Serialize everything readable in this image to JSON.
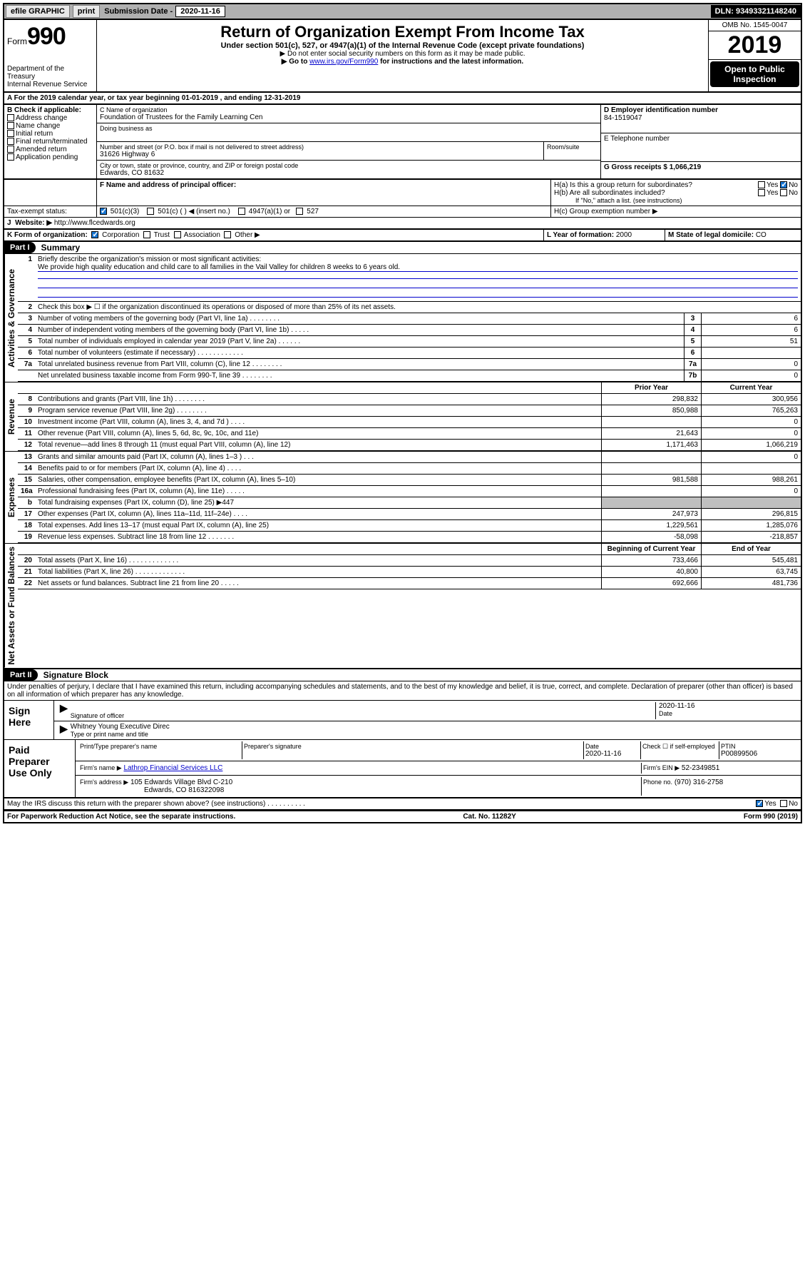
{
  "topbar": {
    "efile": "efile GRAPHIC",
    "print": "print",
    "subdate_label": "Submission Date - ",
    "subdate": "2020-11-16",
    "dln": "DLN: 93493321148240"
  },
  "header": {
    "form_prefix": "Form",
    "form_number": "990",
    "dept": "Department of the Treasury\nInternal Revenue Service",
    "title": "Return of Organization Exempt From Income Tax",
    "subtitle": "Under section 501(c), 527, or 4947(a)(1) of the Internal Revenue Code (except private foundations)",
    "note1": "▶ Do not enter social security numbers on this form as it may be made public.",
    "note2_pre": "▶ Go to ",
    "note2_link": "www.irs.gov/Form990",
    "note2_post": " for instructions and the latest information.",
    "omb": "OMB No. 1545-0047",
    "year": "2019",
    "inspect": "Open to Public Inspection"
  },
  "A": {
    "line": "A For the 2019 calendar year, or tax year beginning 01-01-2019    , and ending 12-31-2019"
  },
  "B": {
    "label": "B Check if applicable:",
    "items": [
      "Address change",
      "Name change",
      "Initial return",
      "Final return/terminated",
      "Amended return",
      "Application pending"
    ]
  },
  "C": {
    "name_label": "C Name of organization",
    "name": "Foundation of Trustees for the Family Learning Cen",
    "dba_label": "Doing business as",
    "addr_label": "Number and street (or P.O. box if mail is not delivered to street address)",
    "room_label": "Room/suite",
    "addr": "31626 Highway 6",
    "city_label": "City or town, state or province, country, and ZIP or foreign postal code",
    "city": "Edwards, CO  81632"
  },
  "D": {
    "label": "D Employer identification number",
    "value": "84-1519047"
  },
  "E": {
    "label": "E Telephone number"
  },
  "G": {
    "label": "G Gross receipts $",
    "value": "1,066,219"
  },
  "F": {
    "label": "F  Name and address of principal officer:"
  },
  "H": {
    "a": "H(a)  Is this a group return for subordinates?",
    "b": "H(b)  Are all subordinates included?",
    "bnote": "If \"No,\" attach a list. (see instructions)",
    "c": "H(c)  Group exemption number ▶",
    "yes": "Yes",
    "no": "No"
  },
  "I": {
    "label": "Tax-exempt status:",
    "opts": [
      "501(c)(3)",
      "501(c) (  ) ◀ (insert no.)",
      "4947(a)(1) or",
      "527"
    ]
  },
  "J": {
    "label": "J",
    "text": "Website: ▶",
    "url": "http://www.flcedwards.org"
  },
  "K": {
    "label": "K Form of organization:",
    "opts": [
      "Corporation",
      "Trust",
      "Association",
      "Other ▶"
    ]
  },
  "L": {
    "label": "L Year of formation:",
    "value": "2000"
  },
  "M": {
    "label": "M State of legal domicile:",
    "value": "CO"
  },
  "part1": {
    "label": "Part I",
    "title": "Summary",
    "section_gov": "Activities & Governance",
    "section_rev": "Revenue",
    "section_exp": "Expenses",
    "section_net": "Net Assets or Fund Balances",
    "q1": "Briefly describe the organization's mission or most significant activities:",
    "a1": "We provide high quality education and child care to all families in the Vail Valley for children 8 weeks to 6 years old.",
    "q2": "Check this box ▶ ☐  if the organization discontinued its operations or disposed of more than 25% of its net assets.",
    "lines": [
      {
        "n": "3",
        "d": "Number of voting members of the governing body (Part VI, line 1a)  .    .    .    .    .    .    .    .",
        "box": "3",
        "v": "6"
      },
      {
        "n": "4",
        "d": "Number of independent voting members of the governing body (Part VI, line 1b)   .     .     .     .     .",
        "box": "4",
        "v": "6"
      },
      {
        "n": "5",
        "d": "Total number of individuals employed in calendar year 2019 (Part V, line 2a)   .     .     .     .     .     .",
        "box": "5",
        "v": "51"
      },
      {
        "n": "6",
        "d": "Total number of volunteers (estimate if necessary)   .     .     .     .     .     .     .     .     .     .     .     .",
        "box": "6",
        "v": ""
      },
      {
        "n": "7a",
        "d": "Total unrelated business revenue from Part VIII, column (C), line 12   .     .     .     .     .     .     .     .",
        "box": "7a",
        "v": "0"
      },
      {
        "n": "",
        "d": "Net unrelated business taxable income from Form 990-T, line 39    .     .     .     .     .     .     .     .",
        "box": "7b",
        "v": "0"
      }
    ],
    "hdr_prior": "Prior Year",
    "hdr_curr": "Current Year",
    "rev": [
      {
        "n": "8",
        "d": "Contributions and grants (Part VIII, line 1h)   .     .     .     .     .     .     .     .",
        "p": "298,832",
        "c": "300,956"
      },
      {
        "n": "9",
        "d": "Program service revenue (Part VIII, line 2g)   .     .     .     .     .     .     .     .",
        "p": "850,988",
        "c": "765,263"
      },
      {
        "n": "10",
        "d": "Investment income (Part VIII, column (A), lines 3, 4, and 7d )   .     .     .     .",
        "p": "",
        "c": "0"
      },
      {
        "n": "11",
        "d": "Other revenue (Part VIII, column (A), lines 5, 6d, 8c, 9c, 10c, and 11e)",
        "p": "21,643",
        "c": "0"
      },
      {
        "n": "12",
        "d": "Total revenue—add lines 8 through 11 (must equal Part VIII, column (A), line 12)",
        "p": "1,171,463",
        "c": "1,066,219"
      }
    ],
    "exp": [
      {
        "n": "13",
        "d": "Grants and similar amounts paid (Part IX, column (A), lines 1–3 )   .     .     .",
        "p": "",
        "c": "0"
      },
      {
        "n": "14",
        "d": "Benefits paid to or for members (Part IX, column (A), line 4)   .     .     .     .",
        "p": "",
        "c": ""
      },
      {
        "n": "15",
        "d": "Salaries, other compensation, employee benefits (Part IX, column (A), lines 5–10)",
        "p": "981,588",
        "c": "988,261"
      },
      {
        "n": "16a",
        "d": "Professional fundraising fees (Part IX, column (A), line 11e)   .     .     .     .     .",
        "p": "",
        "c": "0"
      },
      {
        "n": "b",
        "d": "Total fundraising expenses (Part IX, column (D), line 25) ▶447",
        "p": "GRAY",
        "c": "GRAY"
      },
      {
        "n": "17",
        "d": "Other expenses (Part IX, column (A), lines 11a–11d, 11f–24e)   .     .     .     .",
        "p": "247,973",
        "c": "296,815"
      },
      {
        "n": "18",
        "d": "Total expenses. Add lines 13–17 (must equal Part IX, column (A), line 25)",
        "p": "1,229,561",
        "c": "1,285,076"
      },
      {
        "n": "19",
        "d": "Revenue less expenses. Subtract line 18 from line 12   .     .     .     .     .     .     .",
        "p": "-58,098",
        "c": "-218,857"
      }
    ],
    "hdr_beg": "Beginning of Current Year",
    "hdr_end": "End of Year",
    "net": [
      {
        "n": "20",
        "d": "Total assets (Part X, line 16)   .     .     .     .     .     .     .     .     .     .     .     .     .",
        "p": "733,466",
        "c": "545,481"
      },
      {
        "n": "21",
        "d": "Total liabilities (Part X, line 26)   .     .     .     .     .     .     .     .     .     .     .     .     .",
        "p": "40,800",
        "c": "63,745"
      },
      {
        "n": "22",
        "d": "Net assets or fund balances. Subtract line 21 from line 20   .     .     .     .     .",
        "p": "692,666",
        "c": "481,736"
      }
    ]
  },
  "part2": {
    "label": "Part II",
    "title": "Signature Block",
    "perjury": "Under penalties of perjury, I declare that I have examined this return, including accompanying schedules and statements, and to the best of my knowledge and belief, it is true, correct, and complete. Declaration of preparer (other than officer) is based on all information of which preparer has any knowledge.",
    "sign_here": "Sign Here",
    "sig_officer": "Signature of officer",
    "sig_date": "2020-11-16",
    "date_label": "Date",
    "officer_name": "Whitney Young  Executive Direc",
    "type_label": "Type or print name and title",
    "paid": "Paid Preparer Use Only",
    "prep_name_label": "Print/Type preparer's name",
    "prep_sig_label": "Preparer's signature",
    "prep_date": "2020-11-16",
    "check_self": "Check ☐ if self-employed",
    "ptin_label": "PTIN",
    "ptin": "P00899506",
    "firm_name_label": "Firm's name    ▶",
    "firm_name": "Lathrop Financial Services LLC",
    "firm_ein_label": "Firm's EIN ▶",
    "firm_ein": "52-2349851",
    "firm_addr_label": "Firm's address ▶",
    "firm_addr": "105 Edwards Village Blvd C-210",
    "firm_city": "Edwards, CO  816322098",
    "phone_label": "Phone no.",
    "phone": "(970) 316-2758",
    "discuss": "May the IRS discuss this return with the preparer shown above? (see instructions)    .     .     .     .     .     .     .     .     .     .",
    "yes": "Yes",
    "no": "No"
  },
  "footer": {
    "left": "For Paperwork Reduction Act Notice, see the separate instructions.",
    "mid": "Cat. No. 11282Y",
    "right": "Form 990 (2019)"
  }
}
